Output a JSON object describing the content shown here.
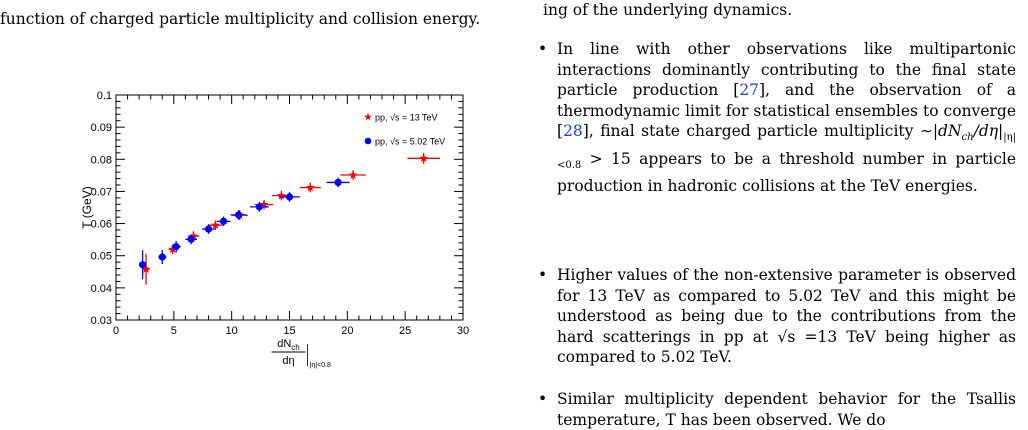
{
  "paper": {
    "caption_tail": "function of charged particle multiplicity and collision energy.",
    "right_top_fragment": "ing of the underlying dynamics.",
    "bullets": [
      {
        "text": "In line with other observations like multipartonic interactions dominantly contributing to the final state particle production [27], and the observation of a thermodynamic limit for statistical ensembles to converge [28], final state charged particle multiplicity ~|dN_ch/dη|_|η|<0.8 > 15 appears to be a threshold number in particle production in hadronic collisions at the TeV energies."
      },
      {
        "text": "Higher values of the non-extensive parameter is observed for 13 TeV as compared to 5.02 TeV and this might be understood as being due to the contributions from the hard scatterings in pp at √s =13 TeV being higher as compared to 5.02 TeV."
      },
      {
        "text": "Similar multiplicity dependent behavior for the Tsallis temperature, T has been observed. We do"
      }
    ]
  },
  "chart_data": {
    "type": "scatter",
    "title": "",
    "xlabel": "dNch/dη |η|<0.8",
    "ylabel": "T (GeV)",
    "xlim": [
      0,
      30
    ],
    "ylim": [
      0.03,
      0.1
    ],
    "xticks": [
      0,
      5,
      10,
      15,
      20,
      25,
      30
    ],
    "yticks": [
      0.03,
      0.04,
      0.05,
      0.06,
      0.07,
      0.08,
      0.09,
      0.1
    ],
    "grid": false,
    "legend_position": "top-right",
    "series": [
      {
        "name": "pp, √s = 13 TeV",
        "color": "#ff0000",
        "marker": "star",
        "points": [
          {
            "x": 2.6,
            "y": 0.0458,
            "xerr": 0.3,
            "yerr": 0.0048
          },
          {
            "x": 4.9,
            "y": 0.052,
            "xerr": 0.35,
            "yerr": 0.0015
          },
          {
            "x": 6.7,
            "y": 0.0561,
            "xerr": 0.5,
            "yerr": 0.0015
          },
          {
            "x": 8.6,
            "y": 0.0595,
            "xerr": 0.6,
            "yerr": 0.0015
          },
          {
            "x": 10.7,
            "y": 0.0626,
            "xerr": 0.7,
            "yerr": 0.0015
          },
          {
            "x": 12.8,
            "y": 0.0659,
            "xerr": 0.8,
            "yerr": 0.0015
          },
          {
            "x": 14.3,
            "y": 0.0687,
            "xerr": 0.8,
            "yerr": 0.0015
          },
          {
            "x": 16.8,
            "y": 0.0712,
            "xerr": 0.9,
            "yerr": 0.0015
          },
          {
            "x": 20.5,
            "y": 0.0751,
            "xerr": 1.1,
            "yerr": 0.0015
          },
          {
            "x": 26.6,
            "y": 0.0803,
            "xerr": 1.4,
            "yerr": 0.0017
          }
        ]
      },
      {
        "name": "pp, √s = 5.02 TeV",
        "color": "#0000ff",
        "marker": "circle",
        "points": [
          {
            "x": 2.3,
            "y": 0.0472,
            "xerr": 0.3,
            "yerr": 0.0045
          },
          {
            "x": 4.0,
            "y": 0.0496,
            "xerr": 0.35,
            "yerr": 0.0022
          },
          {
            "x": 5.2,
            "y": 0.0528,
            "xerr": 0.4,
            "yerr": 0.0018
          },
          {
            "x": 6.5,
            "y": 0.0551,
            "xerr": 0.5,
            "yerr": 0.0015
          },
          {
            "x": 8.0,
            "y": 0.0583,
            "xerr": 0.55,
            "yerr": 0.0015
          },
          {
            "x": 9.3,
            "y": 0.0607,
            "xerr": 0.6,
            "yerr": 0.0015
          },
          {
            "x": 10.6,
            "y": 0.0627,
            "xerr": 0.7,
            "yerr": 0.0015
          },
          {
            "x": 12.4,
            "y": 0.0652,
            "xerr": 0.8,
            "yerr": 0.0015
          },
          {
            "x": 15.0,
            "y": 0.0683,
            "xerr": 0.9,
            "yerr": 0.0015
          },
          {
            "x": 19.2,
            "y": 0.0728,
            "xerr": 1.0,
            "yerr": 0.0015
          }
        ]
      }
    ]
  }
}
